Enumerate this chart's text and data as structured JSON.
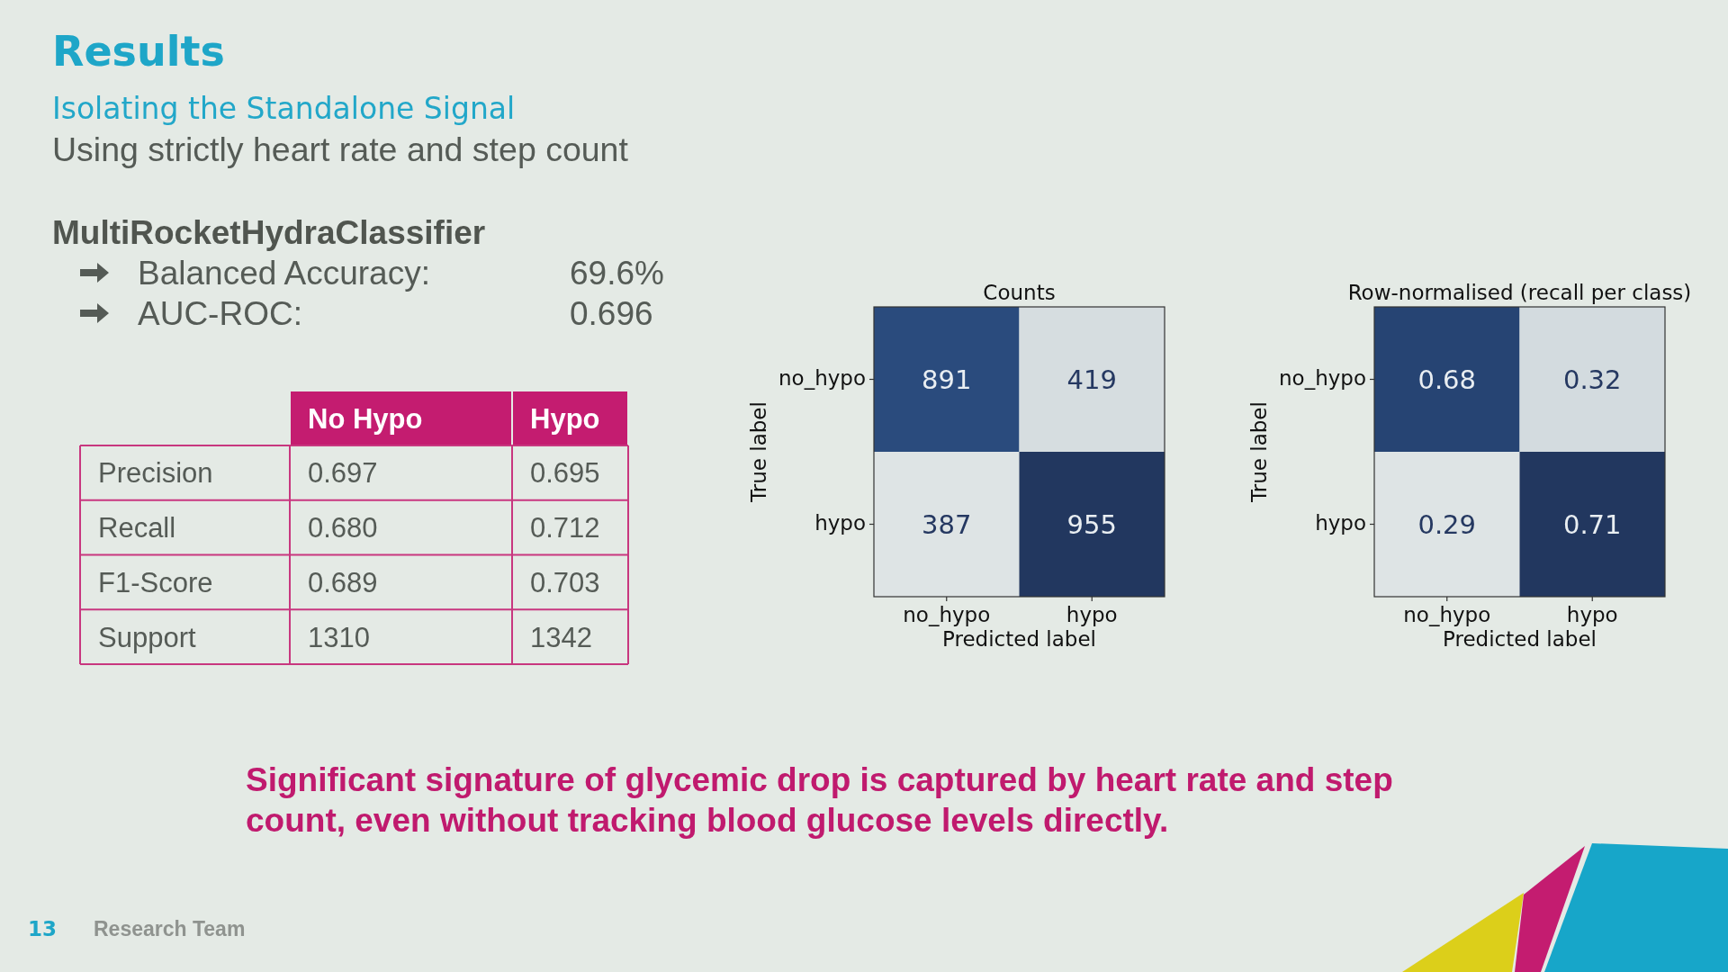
{
  "chart_data": [
    {
      "type": "other",
      "title": "Results",
      "subtitle": "Isolating the Standalone Signal",
      "annotations": [
        "Using strictly heart rate and step count"
      ]
    },
    {
      "type": "other",
      "title": "MultiRocketHydraClassifier",
      "annotations": [
        "Balanced Accuracy:",
        "69.6%",
        "AUC-ROC:",
        "0.696"
      ]
    },
    {
      "type": "other",
      "categories": [
        "Precision",
        "Recall",
        "F1-Score",
        "Support"
      ],
      "series": [
        {
          "name": "No Hypo",
          "values": [
            0.697,
            0.68,
            0.689,
            1310
          ],
          "value_labels": [
            "0.697",
            "0.680",
            "0.689",
            "1310"
          ]
        },
        {
          "name": "Hypo",
          "values": [
            0.695,
            0.712,
            0.703,
            1342
          ],
          "value_labels": [
            "0.695",
            "0.712",
            "0.703",
            "1342"
          ]
        }
      ]
    },
    {
      "type": "heatmap",
      "title": "Counts",
      "xlabel": "Predicted label",
      "ylabel": "True label",
      "categories": [
        "no_hypo",
        "hypo"
      ],
      "y_categories": [
        "no_hypo",
        "hypo"
      ],
      "cells": [
        [
          891,
          419
        ],
        [
          387,
          955
        ]
      ],
      "data_labels": true
    },
    {
      "type": "heatmap",
      "title": "Row-normalised (recall per class)",
      "xlabel": "Predicted label",
      "ylabel": "True label",
      "categories": [
        "no_hypo",
        "hypo"
      ],
      "y_categories": [
        "no_hypo",
        "hypo"
      ],
      "cells": [
        [
          0.68,
          0.32
        ],
        [
          0.29,
          0.71
        ]
      ],
      "data_labels": true
    },
    {
      "type": "other",
      "annotations": [
        "Significant signature of glycemic drop is captured by heart rate and step count, even without tracking blood glucose levels directly.",
        "13",
        "Research Team"
      ]
    }
  ]
}
